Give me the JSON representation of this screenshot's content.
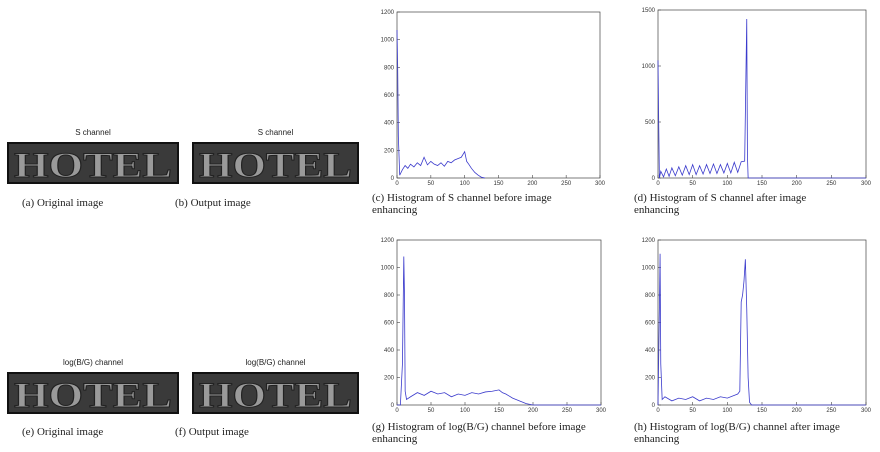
{
  "images": [
    {
      "title": "S channel",
      "word": "HOTEL",
      "caption": "(a) Original image"
    },
    {
      "title": "S channel",
      "word": "HOTEL",
      "caption": "(b) Output image"
    },
    {
      "title": "log(B/G) channel",
      "word": "HOTEL",
      "caption": "(e) Original image"
    },
    {
      "title": "log(B/G) channel",
      "word": "HOTEL",
      "caption": "(f) Output image"
    }
  ],
  "chart_data": [
    {
      "type": "line",
      "caption": "(c) Histogram of S channel before image enhancing",
      "color": "#3a3acc",
      "xlim": [
        0,
        300
      ],
      "xticks": [
        0,
        50,
        100,
        150,
        200,
        250,
        300
      ],
      "ylim": [
        0,
        1200
      ],
      "yticks": [
        0,
        200,
        400,
        600,
        800,
        1000,
        1200
      ],
      "x": [
        0,
        1,
        2,
        4,
        8,
        12,
        16,
        20,
        25,
        30,
        35,
        40,
        45,
        50,
        55,
        60,
        65,
        70,
        75,
        80,
        85,
        90,
        95,
        100,
        103,
        106,
        110,
        115,
        120,
        125,
        130
      ],
      "values": [
        1070,
        800,
        300,
        20,
        60,
        90,
        70,
        100,
        80,
        110,
        90,
        150,
        95,
        120,
        100,
        90,
        110,
        85,
        120,
        110,
        130,
        140,
        150,
        190,
        120,
        100,
        70,
        40,
        20,
        5,
        0
      ]
    },
    {
      "type": "line",
      "caption": "(d) Histogram of S channel after image enhancing",
      "color": "#3a3acc",
      "xlim": [
        0,
        300
      ],
      "xticks": [
        0,
        50,
        100,
        150,
        200,
        250,
        300
      ],
      "ylim": [
        0,
        1500
      ],
      "yticks": [
        0,
        500,
        1000,
        1500
      ],
      "x": [
        0,
        1,
        2,
        4,
        8,
        12,
        16,
        20,
        25,
        30,
        35,
        40,
        45,
        50,
        55,
        60,
        65,
        70,
        75,
        80,
        85,
        90,
        95,
        100,
        105,
        110,
        115,
        120,
        125,
        127,
        128,
        129,
        130,
        300
      ],
      "values": [
        1050,
        500,
        0,
        60,
        10,
        80,
        15,
        90,
        20,
        100,
        25,
        110,
        30,
        120,
        30,
        110,
        35,
        120,
        40,
        125,
        40,
        120,
        45,
        130,
        45,
        140,
        50,
        145,
        150,
        1000,
        1420,
        200,
        0,
        0
      ]
    },
    {
      "type": "line",
      "caption": "(g) Histogram of log(B/G)  channel before image enhancing",
      "color": "#3a3acc",
      "xlim": [
        0,
        300
      ],
      "xticks": [
        0,
        50,
        100,
        150,
        200,
        250,
        300
      ],
      "ylim": [
        0,
        1200
      ],
      "yticks": [
        0,
        200,
        400,
        600,
        800,
        1000,
        1200
      ],
      "x": [
        0,
        5,
        8,
        10,
        11,
        12,
        14,
        20,
        30,
        40,
        50,
        60,
        70,
        80,
        90,
        100,
        110,
        120,
        130,
        140,
        150,
        155,
        160,
        170,
        180,
        190,
        200,
        300
      ],
      "values": [
        0,
        0,
        300,
        1080,
        800,
        100,
        40,
        60,
        90,
        70,
        100,
        80,
        90,
        60,
        80,
        70,
        90,
        80,
        95,
        100,
        110,
        90,
        80,
        50,
        30,
        10,
        0,
        0
      ]
    },
    {
      "type": "line",
      "caption": "(h) Histogram of log(B/G) channel after image enhancing",
      "color": "#3a3acc",
      "xlim": [
        0,
        300
      ],
      "xticks": [
        0,
        50,
        100,
        150,
        200,
        250,
        300
      ],
      "ylim": [
        0,
        1200
      ],
      "yticks": [
        0,
        200,
        400,
        600,
        800,
        1000,
        1200
      ],
      "x": [
        0,
        2,
        3,
        4,
        6,
        10,
        20,
        30,
        40,
        50,
        60,
        70,
        80,
        90,
        100,
        110,
        115,
        118,
        120,
        122,
        124,
        126,
        128,
        130,
        132,
        135,
        150,
        300
      ],
      "values": [
        0,
        700,
        1100,
        300,
        40,
        60,
        30,
        50,
        40,
        60,
        30,
        50,
        40,
        60,
        50,
        70,
        80,
        100,
        750,
        800,
        900,
        1060,
        700,
        200,
        20,
        0,
        0,
        0
      ]
    }
  ]
}
